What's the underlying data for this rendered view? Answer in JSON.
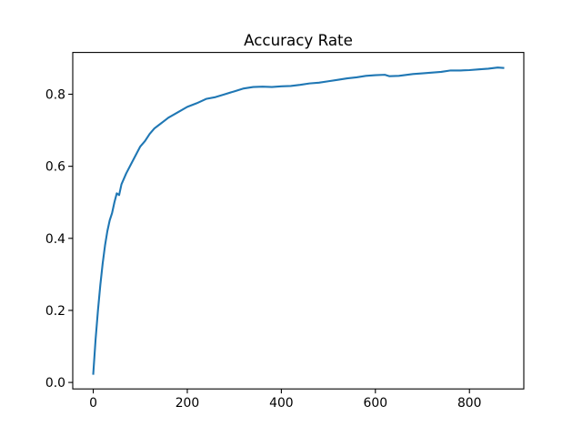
{
  "chart_data": {
    "type": "line",
    "title": "Accuracy Rate",
    "x": [
      0,
      5,
      10,
      15,
      20,
      25,
      30,
      35,
      40,
      45,
      50,
      55,
      60,
      70,
      80,
      90,
      100,
      110,
      120,
      130,
      140,
      150,
      160,
      180,
      200,
      220,
      240,
      260,
      280,
      300,
      320,
      340,
      360,
      380,
      400,
      420,
      440,
      460,
      480,
      500,
      520,
      540,
      560,
      580,
      600,
      620,
      630,
      650,
      680,
      700,
      740,
      760,
      780,
      800,
      820,
      840,
      860,
      872
    ],
    "series": [
      {
        "color": "#1f77b4",
        "values": [
          0.024,
          0.12,
          0.2,
          0.27,
          0.33,
          0.38,
          0.42,
          0.45,
          0.47,
          0.5,
          0.525,
          0.52,
          0.55,
          0.58,
          0.605,
          0.63,
          0.655,
          0.67,
          0.69,
          0.705,
          0.715,
          0.725,
          0.735,
          0.75,
          0.765,
          0.775,
          0.787,
          0.792,
          0.8,
          0.808,
          0.816,
          0.82,
          0.821,
          0.82,
          0.822,
          0.823,
          0.826,
          0.83,
          0.832,
          0.836,
          0.84,
          0.844,
          0.847,
          0.851,
          0.853,
          0.854,
          0.85,
          0.851,
          0.856,
          0.858,
          0.862,
          0.866,
          0.866,
          0.867,
          0.869,
          0.871,
          0.874,
          0.873
        ]
      }
    ],
    "xlim": [
      -43.6,
      915.6
    ],
    "xticks": [
      0,
      200,
      400,
      600,
      800
    ],
    "ylim": [
      -0.018,
      0.916
    ],
    "yticks": [
      {
        "value": 0,
        "label": "0.0"
      },
      0.2,
      0.4,
      0.6,
      0.8
    ]
  }
}
